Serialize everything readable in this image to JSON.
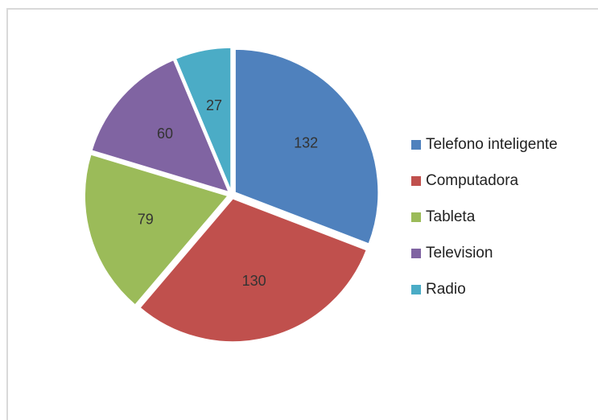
{
  "chart_data": {
    "type": "pie",
    "categories": [
      "Telefono inteligente",
      "Computadora",
      "Tableta",
      "Television",
      "Radio"
    ],
    "values": [
      132,
      130,
      79,
      60,
      27
    ],
    "colors": [
      "#4f81bd",
      "#c0504d",
      "#9bbb59",
      "#8064a2",
      "#4bacc6"
    ],
    "legend": "right"
  }
}
